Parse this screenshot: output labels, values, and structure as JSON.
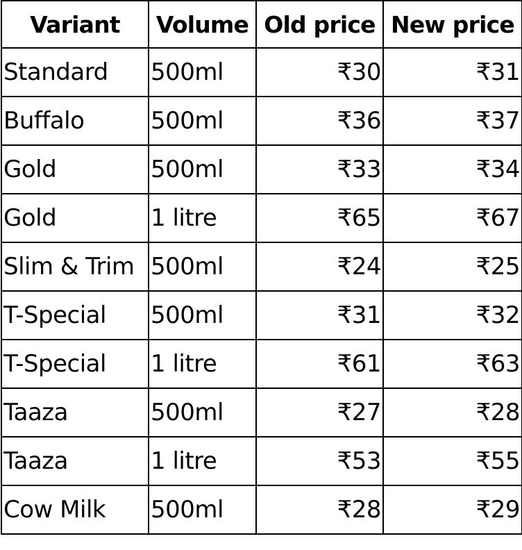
{
  "table": {
    "headers": {
      "variant": "Variant",
      "volume": "Volume",
      "old_price": "Old price",
      "new_price": "New price"
    },
    "rows": [
      {
        "variant": "Standard",
        "volume": "500ml",
        "old_price": "₹30",
        "new_price": "₹31"
      },
      {
        "variant": "Buffalo",
        "volume": "500ml",
        "old_price": "₹36",
        "new_price": "₹37"
      },
      {
        "variant": "Gold",
        "volume": "500ml",
        "old_price": "₹33",
        "new_price": "₹34"
      },
      {
        "variant": "Gold",
        "volume": "1 litre",
        "old_price": "₹65",
        "new_price": "₹67"
      },
      {
        "variant": "Slim & Trim",
        "volume": "500ml",
        "old_price": "₹24",
        "new_price": "₹25"
      },
      {
        "variant": "T-Special",
        "volume": "500ml",
        "old_price": "₹31",
        "new_price": "₹32"
      },
      {
        "variant": "T-Special",
        "volume": "1 litre",
        "old_price": "₹61",
        "new_price": "₹63"
      },
      {
        "variant": "Taaza",
        "volume": "500ml",
        "old_price": "₹27",
        "new_price": "₹28"
      },
      {
        "variant": "Taaza",
        "volume": "1 litre",
        "old_price": "₹53",
        "new_price": "₹55"
      },
      {
        "variant": "Cow Milk",
        "volume": "500ml",
        "old_price": "₹28",
        "new_price": "₹29"
      }
    ]
  }
}
